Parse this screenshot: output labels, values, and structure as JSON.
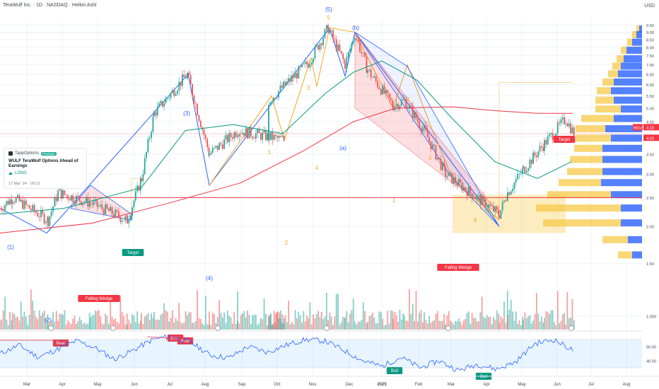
{
  "header": {
    "symbol_line": "TeraWulf Inc. · 1D · NASDAQ · Heikin Ashi",
    "currency": "USD"
  },
  "price_axis": {
    "ticks": [
      "9.50",
      "9.00",
      "8.50",
      "8.00",
      "7.50",
      "7.00",
      "6.50",
      "6.00",
      "5.50",
      "5.00",
      "4.50",
      "4.00",
      "3.50",
      "3.00",
      "2.50",
      "2.00",
      "1.50",
      "1.000"
    ],
    "symbol_tag": "WULF",
    "last_price": "4.10",
    "prev_price": "4.03"
  },
  "rsi_axis": {
    "ticks": [
      "60.00",
      "40.00"
    ]
  },
  "time_axis": {
    "labels": [
      "Mar",
      "Apr",
      "May",
      "Jun",
      "Jul",
      "Aug",
      "Sep",
      "Oct",
      "Nov",
      "Dec",
      "2025",
      "Feb",
      "Mar",
      "Apr",
      "May",
      "Jun",
      "Jul",
      "Aug"
    ]
  },
  "news_card": {
    "source": "TappOptions",
    "badge": "Premium",
    "headline": "WULF TeraWulf Options Ahead of Earnings",
    "position": "LONG",
    "date": "17 Mar '24 · 09:13"
  },
  "annotations": {
    "blue_wave": [
      "(1)",
      "(2)",
      "(3)",
      "(4)",
      "(5)",
      "(a)",
      "(b)"
    ],
    "orange_wave": [
      "1",
      "2",
      "3",
      "4",
      "5",
      "1",
      "2",
      "3",
      "4"
    ],
    "patterns": [
      "Falling Wedge",
      "Falling Wedge"
    ],
    "targets": [
      "Target",
      "Target"
    ],
    "rsi_signals": [
      "Bear",
      "Bear",
      "Bear",
      "Bull",
      "Bull"
    ]
  },
  "colors": {
    "up": "#26a69a",
    "down": "#ef5350",
    "elliott": "#2962ff",
    "orange_wave": "#f5a623",
    "ema_fast": "#089981",
    "ema_slow": "#f23645",
    "vp_up": "#f7c948",
    "vp_down": "#2962ff"
  },
  "chart_data": {
    "type": "candlestick",
    "ylim": [
      1.0,
      9.6
    ],
    "y_scale": "log",
    "points": [
      {
        "x": "Feb",
        "y": 2.3
      },
      {
        "x": "Mar",
        "y": 2.5
      },
      {
        "x": "Mar",
        "y": 2.1
      },
      {
        "x": "Apr",
        "y": 2.6
      },
      {
        "x": "May",
        "y": 2.4
      },
      {
        "x": "May",
        "y": 2.1
      },
      {
        "x": "Jun",
        "y": 2.9
      },
      {
        "x": "Jun",
        "y": 4.8
      },
      {
        "x": "Jul",
        "y": 6.5
      },
      {
        "x": "Aug",
        "y": 3.5
      },
      {
        "x": "Sep",
        "y": 4.2
      },
      {
        "x": "Oct",
        "y": 3.9
      },
      {
        "x": "Oct",
        "y": 5.3
      },
      {
        "x": "Nov",
        "y": 7.1
      },
      {
        "x": "Nov",
        "y": 9.3
      },
      {
        "x": "Dec",
        "y": 7.0
      },
      {
        "x": "Dec",
        "y": 8.9
      },
      {
        "x": "2025",
        "y": 6.7
      },
      {
        "x": "2025",
        "y": 5.1
      },
      {
        "x": "Feb",
        "y": 5.3
      },
      {
        "x": "Feb",
        "y": 4.2
      },
      {
        "x": "Mar",
        "y": 3.0
      },
      {
        "x": "Apr",
        "y": 2.2
      },
      {
        "x": "Apr",
        "y": 2.6
      },
      {
        "x": "May",
        "y": 3.1
      },
      {
        "x": "May",
        "y": 3.8
      },
      {
        "x": "Jun",
        "y": 4.6
      },
      {
        "x": "Jun",
        "y": 4.1
      }
    ],
    "ema_fast": [
      {
        "x": "Feb",
        "y": 2.2
      },
      {
        "x": "Apr",
        "y": 2.3
      },
      {
        "x": "Jun",
        "y": 2.7
      },
      {
        "x": "Jul",
        "y": 4.2
      },
      {
        "x": "Aug",
        "y": 4.4
      },
      {
        "x": "Oct",
        "y": 4.1
      },
      {
        "x": "Nov",
        "y": 5.6
      },
      {
        "x": "Dec",
        "y": 6.6
      },
      {
        "x": "2025",
        "y": 7.2
      },
      {
        "x": "Feb",
        "y": 6.2
      },
      {
        "x": "Mar",
        "y": 4.6
      },
      {
        "x": "Apr",
        "y": 3.3
      },
      {
        "x": "May",
        "y": 2.9
      },
      {
        "x": "Jun",
        "y": 3.3
      }
    ],
    "ema_slow": [
      {
        "x": "Feb",
        "y": 1.9
      },
      {
        "x": "May",
        "y": 2.05
      },
      {
        "x": "Jul",
        "y": 2.4
      },
      {
        "x": "Sep",
        "y": 2.8
      },
      {
        "x": "Nov",
        "y": 3.6
      },
      {
        "x": "2025",
        "y": 4.5
      },
      {
        "x": "Feb",
        "y": 5.0
      },
      {
        "x": "Mar",
        "y": 5.05
      },
      {
        "x": "Apr",
        "y": 4.9
      },
      {
        "x": "May",
        "y": 4.8
      },
      {
        "x": "Jun",
        "y": 4.8
      }
    ],
    "rsi": {
      "ylim": [
        20,
        80
      ],
      "values": [
        50,
        62,
        45,
        56,
        68,
        58,
        42,
        55,
        70,
        75,
        66,
        48,
        44,
        60,
        52,
        62,
        70,
        68,
        55,
        40,
        32,
        45,
        30,
        40,
        26,
        35,
        28,
        38,
        64,
        70,
        55
      ]
    }
  }
}
